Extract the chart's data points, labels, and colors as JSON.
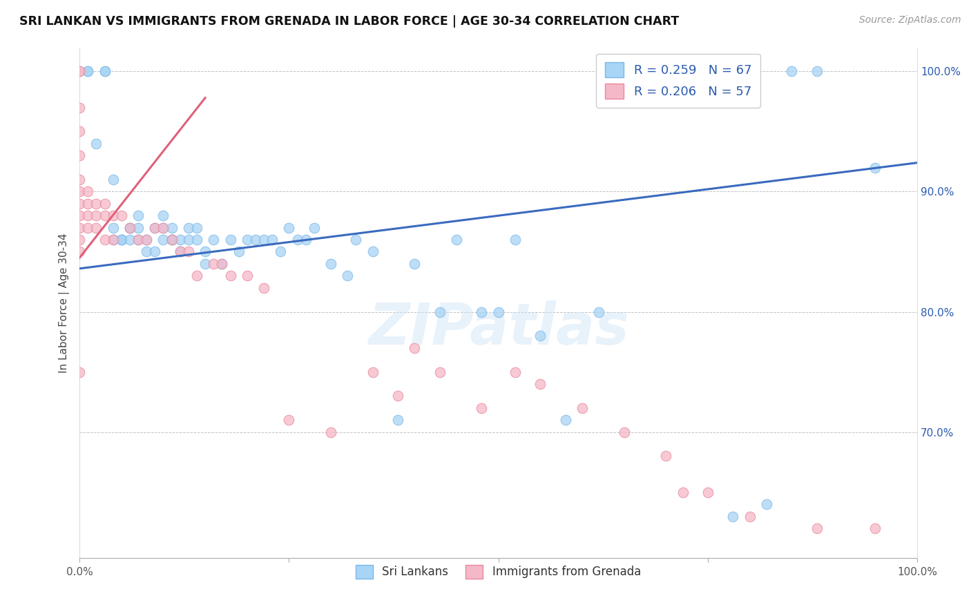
{
  "title": "SRI LANKAN VS IMMIGRANTS FROM GRENADA IN LABOR FORCE | AGE 30-34 CORRELATION CHART",
  "source": "Source: ZipAtlas.com",
  "ylabel": "In Labor Force | Age 30-34",
  "xlim": [
    0.0,
    1.0
  ],
  "ylim": [
    0.595,
    1.02
  ],
  "y_tick_vals_right": [
    0.7,
    0.8,
    0.9,
    1.0
  ],
  "y_tick_labels_right": [
    "70.0%",
    "80.0%",
    "90.0%",
    "100.0%"
  ],
  "legend_R_blue": "R = 0.259",
  "legend_N_blue": "N = 67",
  "legend_R_pink": "R = 0.206",
  "legend_N_pink": "N = 57",
  "blue_color": "#a8d4f5",
  "blue_edge_color": "#7ab8e8",
  "pink_color": "#f5b8c8",
  "pink_edge_color": "#e8899a",
  "blue_line_color": "#3a6abf",
  "pink_line_color": "#e0607a",
  "text_color_blue": "#2a5ab0",
  "watermark": "ZIPatlas",
  "blue_scatter_x": [
    0.01,
    0.01,
    0.02,
    0.03,
    0.03,
    0.04,
    0.04,
    0.04,
    0.05,
    0.05,
    0.05,
    0.06,
    0.06,
    0.06,
    0.07,
    0.07,
    0.07,
    0.08,
    0.08,
    0.09,
    0.09,
    0.1,
    0.1,
    0.1,
    0.11,
    0.11,
    0.11,
    0.12,
    0.12,
    0.13,
    0.13,
    0.14,
    0.14,
    0.15,
    0.15,
    0.16,
    0.17,
    0.18,
    0.19,
    0.2,
    0.21,
    0.22,
    0.23,
    0.24,
    0.25,
    0.26,
    0.27,
    0.28,
    0.3,
    0.32,
    0.33,
    0.35,
    0.38,
    0.4,
    0.43,
    0.45,
    0.48,
    0.5,
    0.52,
    0.55,
    0.58,
    0.62,
    0.78,
    0.82,
    0.85,
    0.88,
    0.95
  ],
  "blue_scatter_y": [
    1.0,
    1.0,
    0.94,
    1.0,
    1.0,
    0.91,
    0.87,
    0.86,
    0.86,
    0.86,
    0.86,
    0.87,
    0.87,
    0.86,
    0.88,
    0.87,
    0.86,
    0.86,
    0.85,
    0.87,
    0.85,
    0.88,
    0.87,
    0.86,
    0.87,
    0.86,
    0.86,
    0.86,
    0.85,
    0.87,
    0.86,
    0.87,
    0.86,
    0.85,
    0.84,
    0.86,
    0.84,
    0.86,
    0.85,
    0.86,
    0.86,
    0.86,
    0.86,
    0.85,
    0.87,
    0.86,
    0.86,
    0.87,
    0.84,
    0.83,
    0.86,
    0.85,
    0.71,
    0.84,
    0.8,
    0.86,
    0.8,
    0.8,
    0.86,
    0.78,
    0.71,
    0.8,
    0.63,
    0.64,
    1.0,
    1.0,
    0.92
  ],
  "pink_scatter_x": [
    0.0,
    0.0,
    0.0,
    0.0,
    0.0,
    0.0,
    0.0,
    0.0,
    0.0,
    0.0,
    0.0,
    0.0,
    0.0,
    0.01,
    0.01,
    0.01,
    0.01,
    0.02,
    0.02,
    0.02,
    0.03,
    0.03,
    0.03,
    0.04,
    0.04,
    0.05,
    0.06,
    0.07,
    0.08,
    0.09,
    0.1,
    0.11,
    0.12,
    0.13,
    0.14,
    0.16,
    0.17,
    0.18,
    0.2,
    0.22,
    0.25,
    0.3,
    0.35,
    0.38,
    0.4,
    0.43,
    0.48,
    0.52,
    0.55,
    0.6,
    0.65,
    0.7,
    0.72,
    0.75,
    0.8,
    0.88,
    0.95
  ],
  "pink_scatter_y": [
    1.0,
    1.0,
    0.97,
    0.95,
    0.93,
    0.91,
    0.9,
    0.89,
    0.88,
    0.87,
    0.86,
    0.85,
    0.75,
    0.9,
    0.89,
    0.88,
    0.87,
    0.89,
    0.88,
    0.87,
    0.89,
    0.88,
    0.86,
    0.88,
    0.86,
    0.88,
    0.87,
    0.86,
    0.86,
    0.87,
    0.87,
    0.86,
    0.85,
    0.85,
    0.83,
    0.84,
    0.84,
    0.83,
    0.83,
    0.82,
    0.71,
    0.7,
    0.75,
    0.73,
    0.77,
    0.75,
    0.72,
    0.75,
    0.74,
    0.72,
    0.7,
    0.68,
    0.65,
    0.65,
    0.63,
    0.62,
    0.62
  ],
  "blue_trendline_x": [
    0.0,
    1.0
  ],
  "blue_trendline_y": [
    0.836,
    0.924
  ],
  "pink_trendline_x": [
    0.0,
    0.15
  ],
  "pink_trendline_y": [
    0.845,
    0.978
  ]
}
